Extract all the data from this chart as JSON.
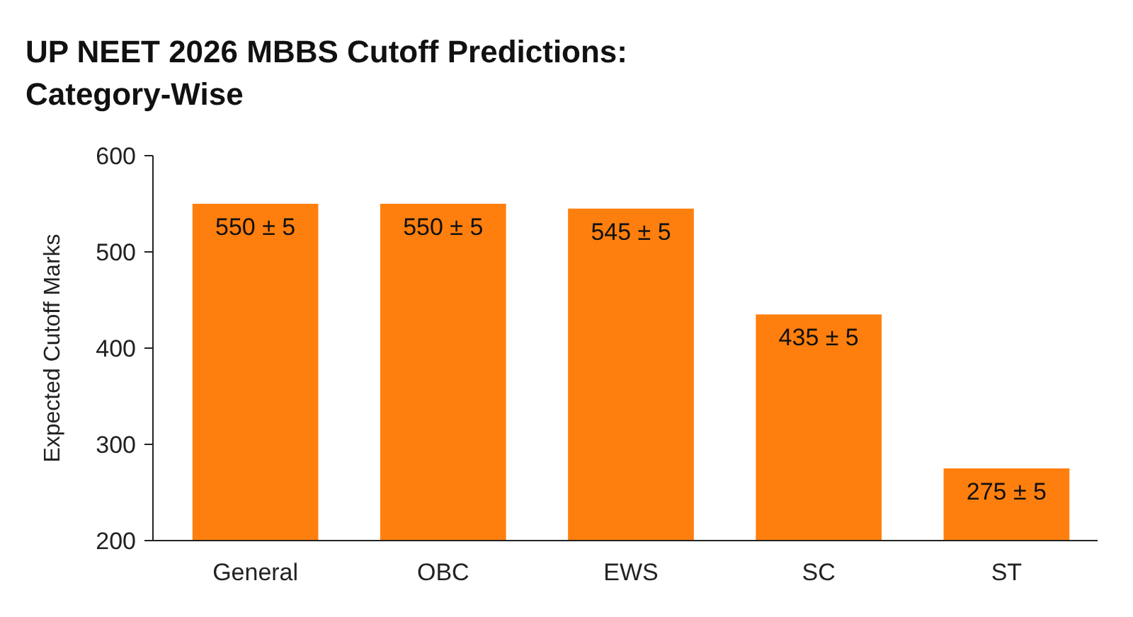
{
  "chart_data": {
    "type": "bar",
    "title": "UP NEET 2026 MBBS Cutoff Predictions: Category-Wise",
    "ylabel": "Expected Cutoff Marks",
    "categories": [
      "General",
      "OBC",
      "EWS",
      "SC",
      "ST"
    ],
    "values": [
      550,
      550,
      545,
      435,
      275
    ],
    "value_labels": [
      "550 ± 5",
      "550 ± 5",
      "545 ± 5",
      "435 ± 5",
      "275 ± 5"
    ],
    "color": "#ff7f0e",
    "ylim": [
      200,
      600
    ],
    "yticks": [
      200,
      300,
      400,
      500,
      600
    ],
    "grid": false
  }
}
